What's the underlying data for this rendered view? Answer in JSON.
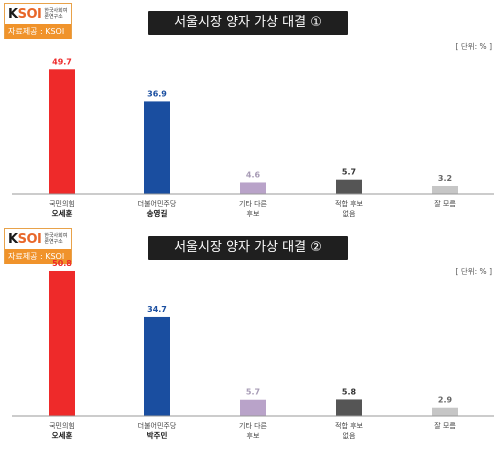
{
  "logo": {
    "mark_k": "K",
    "mark_rest": "SOI",
    "org": "한국사회여론연구소",
    "source": "자료제공 : KSOI"
  },
  "unit_label": "[ 단위: % ]",
  "unit_label2": "[ 단위: % ]",
  "colors": {
    "red": "#ee2a2a",
    "blue": "#1a4ea0",
    "lavender": "#b9a3c9",
    "dark_gray": "#555555",
    "light_gray": "#c6c6c6"
  },
  "chart_data": [
    {
      "type": "bar",
      "title": "서울시장 양자 가상 대결 ①",
      "categories": [
        {
          "line1": "국민의힘",
          "line2": "오세훈",
          "line2_bold": true
        },
        {
          "line1": "더불어민주당",
          "line2": "송영길",
          "line2_bold": true
        },
        {
          "line1": "기타 다른",
          "line2": "후보",
          "line2_bold": false
        },
        {
          "line1": "적합 후보",
          "line2": "없음",
          "line2_bold": false
        },
        {
          "line1": "잘 모름",
          "line2": "",
          "line2_bold": false
        }
      ],
      "values": [
        49.7,
        36.9,
        4.6,
        5.7,
        3.2
      ],
      "value_labels": [
        "49.7",
        "36.9",
        "4.6",
        "5.7",
        "3.2"
      ],
      "bar_colors": [
        "#ee2a2a",
        "#1a4ea0",
        "#b9a3c9",
        "#555555",
        "#c6c6c6"
      ],
      "label_colors": [
        "#ee2a2a",
        "#1a4ea0",
        "#a79bb5",
        "#333333",
        "#666666"
      ],
      "unit": "%",
      "ylim": [
        0,
        55
      ]
    },
    {
      "type": "bar",
      "title": "서울시장 양자 가상 대결 ②",
      "categories": [
        {
          "line1": "국민의힘",
          "line2": "오세훈",
          "line2_bold": true
        },
        {
          "line1": "더불어민주당",
          "line2": "박주민",
          "line2_bold": true
        },
        {
          "line1": "기타 다른",
          "line2": "후보",
          "line2_bold": false
        },
        {
          "line1": "적합 후보",
          "line2": "없음",
          "line2_bold": false
        },
        {
          "line1": "잘 모름",
          "line2": "",
          "line2_bold": false
        }
      ],
      "values": [
        50.8,
        34.7,
        5.7,
        5.8,
        2.9
      ],
      "value_labels": [
        "50.8",
        "34.7",
        "5.7",
        "5.8",
        "2.9"
      ],
      "bar_colors": [
        "#ee2a2a",
        "#1a4ea0",
        "#b9a3c9",
        "#555555",
        "#c6c6c6"
      ],
      "label_colors": [
        "#ee2a2a",
        "#1a4ea0",
        "#a79bb5",
        "#333333",
        "#666666"
      ],
      "unit": "%",
      "ylim": [
        0,
        55
      ]
    }
  ]
}
